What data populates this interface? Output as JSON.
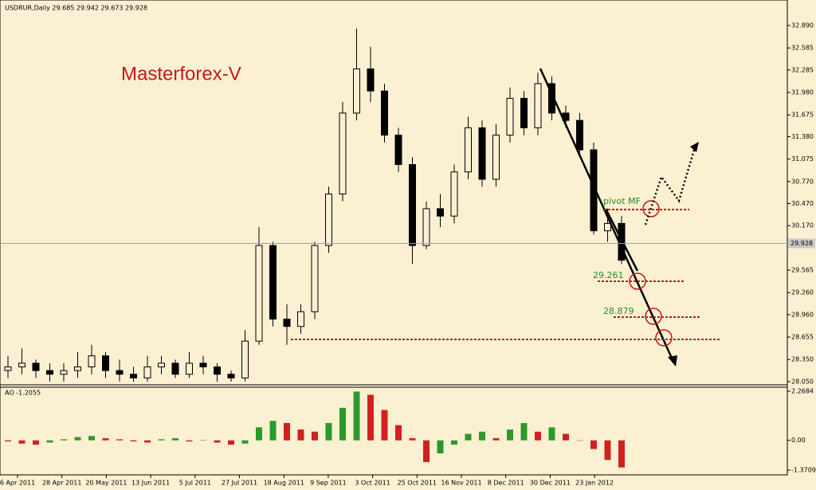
{
  "header": "USDRUR,Daily  29.685 29.942 29.673 29.928",
  "brand": "Masterforex-V",
  "annotations": [
    "pivot MF",
    "29.261",
    "28.879"
  ],
  "x_labels": [
    "6 Apr 2011",
    "28 Apr 2011",
    "20 May 2011",
    "13 Jun 2011",
    "5 Jul 2011",
    "27 Jul 2011",
    "18 Aug 2011",
    "9 Sep 2011",
    "3 Oct 2011",
    "25 Oct 2011",
    "16 Nov 2011",
    "8 Dec 2011",
    "30 Dec 2011",
    "23 Jan 2012"
  ],
  "chart_data": [
    {
      "type": "candlestick",
      "color": "#000000",
      "current_price": 29.928,
      "ylim": [
        28.017,
        33.15
      ],
      "yticks": [
        {
          "value": 32.89,
          "label": "32.890"
        },
        {
          "value": 32.585,
          "label": "32.585"
        },
        {
          "value": 32.285,
          "label": "32.285"
        },
        {
          "value": 31.98,
          "label": "31.980"
        },
        {
          "value": 31.675,
          "label": "31.675"
        },
        {
          "value": 31.38,
          "label": "31.380"
        },
        {
          "value": 31.075,
          "label": "31.075"
        },
        {
          "value": 30.77,
          "label": "30.770"
        },
        {
          "value": 30.47,
          "label": "30.470"
        },
        {
          "value": 30.17,
          "label": "30.170"
        },
        {
          "value": 29.565,
          "label": "29.565"
        },
        {
          "value": 29.26,
          "label": "29.260"
        },
        {
          "value": 28.96,
          "label": "28.960"
        },
        {
          "value": 28.655,
          "label": "28.655"
        },
        {
          "value": 28.35,
          "label": "28.350"
        },
        {
          "value": 28.05,
          "label": "28.050"
        }
      ],
      "open": [
        28.2,
        28.25,
        28.3,
        28.2,
        28.15,
        28.2,
        28.25,
        28.4,
        28.2,
        28.15,
        28.1,
        28.25,
        28.3,
        28.15,
        28.3,
        28.25,
        28.15,
        28.1,
        28.6,
        29.9,
        28.9,
        28.8,
        29.0,
        29.9,
        30.6,
        31.7,
        32.3,
        32.0,
        31.4,
        31.0,
        29.9,
        30.4,
        30.3,
        30.9,
        31.5,
        30.8,
        31.4,
        31.9,
        31.5,
        32.1,
        31.7,
        31.6,
        31.2,
        30.1,
        30.2
      ],
      "high": [
        28.4,
        28.5,
        28.35,
        28.3,
        28.3,
        28.45,
        28.55,
        28.45,
        28.35,
        28.25,
        28.4,
        28.4,
        28.35,
        28.45,
        28.4,
        28.3,
        28.2,
        28.75,
        30.15,
        29.95,
        29.1,
        29.1,
        29.95,
        30.7,
        31.85,
        32.85,
        32.6,
        32.1,
        31.5,
        31.1,
        30.5,
        30.6,
        31.0,
        31.65,
        31.6,
        31.55,
        32.05,
        32.0,
        32.25,
        32.2,
        31.8,
        31.7,
        31.3,
        30.4,
        30.3
      ],
      "low": [
        28.1,
        28.15,
        28.1,
        28.05,
        28.05,
        28.1,
        28.15,
        28.1,
        28.05,
        28.05,
        28.05,
        28.15,
        28.1,
        28.1,
        28.15,
        28.05,
        28.05,
        28.05,
        28.55,
        28.8,
        28.55,
        28.7,
        28.9,
        29.8,
        30.5,
        31.6,
        31.85,
        31.3,
        30.9,
        29.65,
        29.85,
        30.15,
        30.2,
        30.8,
        30.7,
        30.7,
        31.3,
        31.4,
        31.4,
        31.6,
        31.5,
        31.1,
        30.05,
        29.95,
        29.65
      ],
      "close": [
        28.25,
        28.3,
        28.2,
        28.15,
        28.2,
        28.25,
        28.4,
        28.2,
        28.15,
        28.1,
        28.25,
        28.3,
        28.15,
        28.3,
        28.25,
        28.15,
        28.1,
        28.6,
        29.9,
        28.9,
        28.8,
        29.0,
        29.9,
        30.6,
        31.7,
        32.3,
        32.0,
        31.4,
        31.0,
        29.9,
        30.4,
        30.3,
        30.9,
        31.5,
        30.8,
        31.4,
        31.9,
        31.5,
        32.1,
        31.7,
        31.6,
        31.2,
        30.1,
        30.2,
        29.7
      ]
    },
    {
      "type": "oscillator",
      "title": "AO -1.2055",
      "up_color": "#2a9a2a",
      "down_color": "#d02020",
      "ylim": [
        -1.554,
        2.45
      ],
      "yticks": [
        2.2684,
        {
          "value": 0,
          "label": "0.00"
        },
        -1.3709
      ],
      "values": [
        -0.05,
        -0.15,
        -0.2,
        -0.1,
        0.05,
        0.15,
        0.2,
        0.1,
        0.05,
        -0.05,
        -0.1,
        0.05,
        0.1,
        -0.05,
        0.02,
        -0.1,
        -0.2,
        -0.15,
        0.6,
        0.9,
        0.8,
        0.5,
        0.4,
        0.8,
        1.5,
        2.25,
        2.1,
        1.4,
        0.7,
        0.1,
        -1.0,
        -0.6,
        -0.2,
        0.3,
        0.4,
        0.1,
        0.5,
        0.8,
        0.4,
        0.6,
        0.3,
        0.0,
        -0.4,
        -0.9,
        -1.25
      ]
    }
  ]
}
